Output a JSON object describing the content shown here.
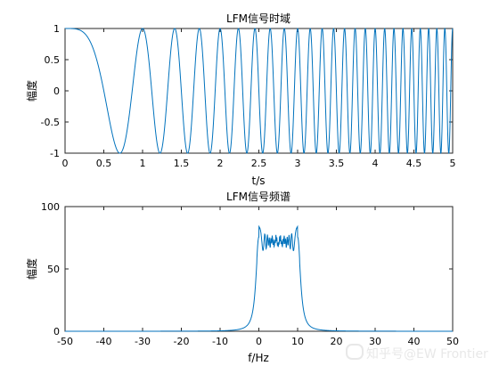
{
  "chart_data": [
    {
      "type": "line",
      "title": "LFM信号时域",
      "xlabel": "t/s",
      "ylabel": "幅度",
      "xlim": [
        0,
        5
      ],
      "ylim": [
        -1,
        1
      ],
      "xticks": [
        "0",
        "0.5",
        "1",
        "1.5",
        "2",
        "2.5",
        "3",
        "3.5",
        "4",
        "4.5",
        "5"
      ],
      "yticks": [
        "-1",
        "-0.5",
        "0",
        "0.5",
        "1"
      ],
      "series": [
        {
          "color": "#0072BD",
          "function": "cos(pi*k*t^2)",
          "k": 2,
          "x": [
            0,
            0.5,
            0.71,
            1.0,
            1.22,
            1.41,
            1.58,
            1.73,
            1.87,
            2.0
          ],
          "y": [
            1,
            0,
            -1,
            1,
            -1,
            1,
            -1,
            1,
            -1,
            1
          ]
        }
      ],
      "grid": false,
      "legend": "none"
    },
    {
      "type": "line",
      "title": "LFM信号频谱",
      "xlabel": "f/Hz",
      "ylabel": "幅度",
      "xlim": [
        -50,
        50
      ],
      "ylim": [
        0,
        100
      ],
      "xticks": [
        "-50",
        "-40",
        "-30",
        "-20",
        "-10",
        "0",
        "10",
        "20",
        "30",
        "40",
        "50"
      ],
      "yticks": [
        "0",
        "50",
        "100"
      ],
      "series": [
        {
          "color": "#0072BD",
          "x": [
            -50,
            -20,
            -10,
            -5,
            -2,
            -1,
            0,
            0.5,
            1,
            2,
            5,
            8,
            9,
            9.5,
            10,
            11,
            12,
            15,
            20,
            30,
            50
          ],
          "y": [
            0,
            1,
            3,
            6,
            15,
            30,
            60,
            80,
            84,
            72,
            72,
            72,
            84,
            80,
            60,
            30,
            15,
            6,
            3,
            1,
            0
          ]
        }
      ],
      "grid": false,
      "legend": "none"
    }
  ],
  "watermark": "知乎号@EW Frontier"
}
